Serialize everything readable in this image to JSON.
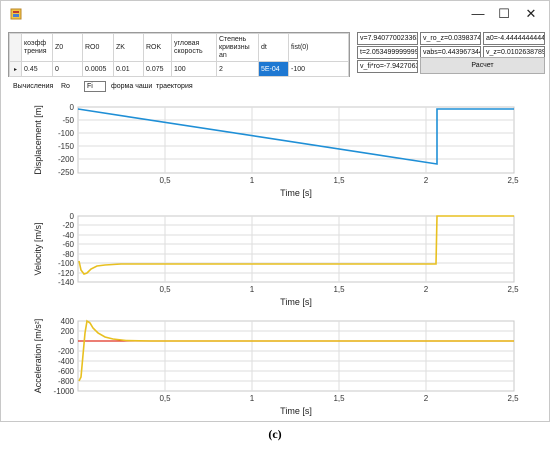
{
  "window": {
    "minimize": "—",
    "maximize": "☐",
    "close": "✕"
  },
  "grid": {
    "headers": [
      "коэфф трения",
      "Z0",
      "RO0",
      "ZK",
      "ROK",
      "угловая скорость",
      "Степень кривизны an",
      "dt",
      "fist(0)"
    ],
    "row_marker": "▸",
    "row": [
      "0.45",
      "0",
      "0.0005",
      "0.01",
      "0.075",
      "100",
      "2",
      "5E-04",
      "-100"
    ]
  },
  "outputs": {
    "v": "v=7.940770023363",
    "v_ro_z": "v_ro_z=0.03983745",
    "a0": "a0=-4.444444444444",
    "t": "t=2.0534999999998",
    "vabs": "vabs=0.4439673441",
    "v_z": "v_z=0.0102638789",
    "v_fi_ro": "v_fi*ro=-7.94270633"
  },
  "calc_button": "Расчет",
  "tabs": {
    "calc": "Вычисления",
    "ro": "Ro",
    "fi_value": "Fi",
    "bowl": "форма чаши",
    "traj": "траектория"
  },
  "caption": "(c)",
  "charts": [
    {
      "ylabel": "Displacement [m]",
      "xlabel": "Time [s]",
      "yticks": [
        "0",
        "-50",
        "-100",
        "-150",
        "-200",
        "-250"
      ],
      "xticks": [
        "0,5",
        "1",
        "1,5",
        "2",
        "2,5"
      ],
      "color": "#1f8fd6"
    },
    {
      "ylabel": "Velocity [m/s]",
      "xlabel": "Time [s]",
      "yticks": [
        "0",
        "-20",
        "-40",
        "-60",
        "-80",
        "-100",
        "-120",
        "-140"
      ],
      "xticks": [
        "0,5",
        "1",
        "1,5",
        "2",
        "2,5"
      ],
      "color": "#e8c020"
    },
    {
      "ylabel": "Acceleration [m/s²]",
      "xlabel": "Time [s]",
      "yticks": [
        "400",
        "200",
        "0",
        "-200",
        "-400",
        "-600",
        "-800",
        "-1000"
      ],
      "xticks": [
        "0,5",
        "1",
        "1,5",
        "2",
        "2,5"
      ],
      "color": "#e8c020"
    }
  ]
}
